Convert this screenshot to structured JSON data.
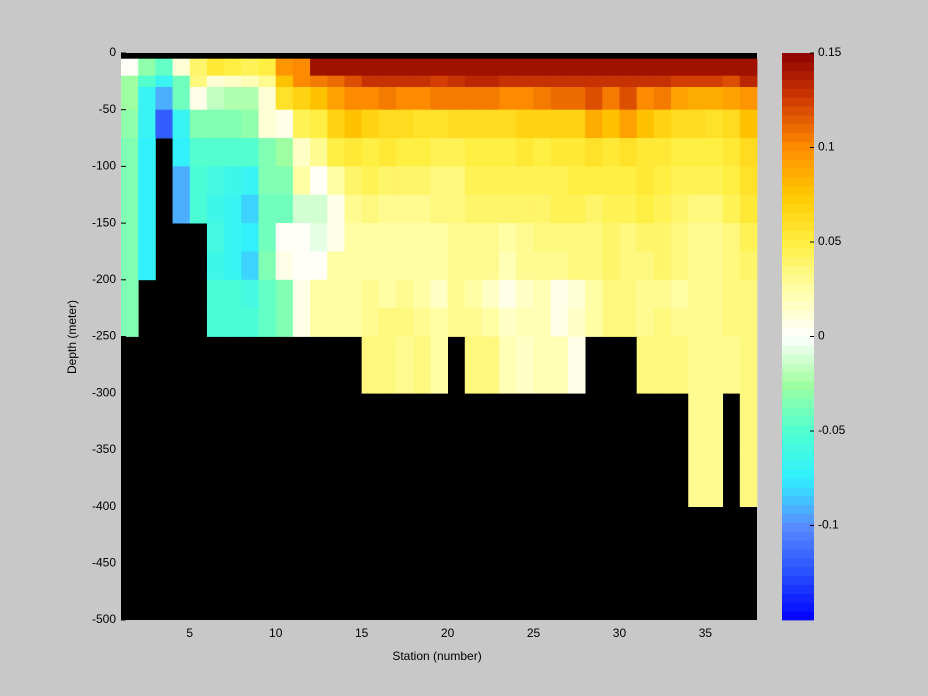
{
  "chart_data": {
    "type": "heatmap",
    "xlabel": "Station (number)",
    "ylabel": "Depth (meter)",
    "x": [
      1,
      2,
      3,
      4,
      5,
      6,
      7,
      8,
      9,
      10,
      11,
      12,
      13,
      14,
      15,
      16,
      17,
      18,
      19,
      20,
      21,
      22,
      23,
      24,
      25,
      26,
      27,
      28,
      29,
      30,
      31,
      32,
      33,
      34,
      35,
      36,
      37,
      38
    ],
    "y": [
      0,
      -5,
      -20,
      -30,
      -50,
      -75,
      -100,
      -125,
      -150,
      -175,
      -200,
      -225,
      -250,
      -300,
      -350,
      -400,
      -500
    ],
    "xlim": [
      1,
      38
    ],
    "ylim": [
      -500,
      0
    ],
    "xticks": [
      5,
      10,
      15,
      20,
      25,
      30,
      35
    ],
    "yticks": [
      0,
      -50,
      -100,
      -150,
      -200,
      -250,
      -300,
      -350,
      -400,
      -450,
      -500
    ],
    "nan_color": "#000000",
    "z": [
      [
        null,
        null,
        null,
        null,
        null,
        null,
        null,
        null,
        null,
        null,
        null,
        null,
        null,
        null,
        null,
        null,
        null,
        null,
        null,
        null,
        null,
        null,
        null,
        null,
        null,
        null,
        null,
        null,
        null,
        null,
        null,
        null,
        null,
        null,
        null,
        null,
        null
      ],
      [
        0.0,
        -0.03,
        -0.045,
        0.01,
        0.04,
        0.055,
        0.05,
        0.045,
        0.05,
        0.095,
        0.1,
        0.145,
        0.145,
        0.145,
        0.145,
        0.145,
        0.145,
        0.145,
        0.145,
        0.145,
        0.145,
        0.145,
        0.145,
        0.145,
        0.145,
        0.145,
        0.145,
        0.145,
        0.145,
        0.145,
        0.145,
        0.145,
        0.145,
        0.145,
        0.145,
        0.145,
        0.145
      ],
      [
        -0.025,
        -0.05,
        -0.07,
        -0.04,
        0.035,
        0.01,
        0.015,
        0.02,
        0.03,
        0.075,
        0.1,
        0.105,
        0.11,
        0.12,
        0.13,
        0.13,
        0.13,
        0.13,
        0.125,
        0.13,
        0.135,
        0.135,
        0.13,
        0.13,
        0.13,
        0.13,
        0.13,
        0.13,
        0.13,
        0.13,
        0.13,
        0.13,
        0.125,
        0.125,
        0.125,
        0.12,
        0.135
      ],
      [
        -0.025,
        -0.07,
        -0.09,
        -0.04,
        0.005,
        -0.015,
        -0.02,
        -0.02,
        0.01,
        0.06,
        0.07,
        0.075,
        0.09,
        0.1,
        0.1,
        0.105,
        0.1,
        0.1,
        0.105,
        0.105,
        0.105,
        0.105,
        0.1,
        0.1,
        0.105,
        0.11,
        0.11,
        0.12,
        0.105,
        0.12,
        0.1,
        0.105,
        0.09,
        0.085,
        0.085,
        0.09,
        0.095
      ],
      [
        -0.03,
        -0.07,
        -0.12,
        -0.07,
        -0.035,
        -0.035,
        -0.035,
        -0.03,
        0.01,
        0.005,
        0.045,
        0.05,
        0.07,
        0.075,
        0.07,
        0.065,
        0.065,
        0.06,
        0.06,
        0.065,
        0.065,
        0.065,
        0.065,
        0.07,
        0.07,
        0.07,
        0.07,
        0.085,
        0.075,
        0.09,
        0.075,
        0.07,
        0.065,
        0.065,
        0.06,
        0.065,
        0.075
      ],
      [
        -0.035,
        -0.075,
        null,
        -0.075,
        -0.05,
        -0.05,
        -0.05,
        -0.05,
        -0.035,
        -0.025,
        0.015,
        0.03,
        0.05,
        0.055,
        0.05,
        0.055,
        0.05,
        0.05,
        0.045,
        0.045,
        0.05,
        0.05,
        0.05,
        0.055,
        0.05,
        0.055,
        0.055,
        0.06,
        0.055,
        0.06,
        0.055,
        0.055,
        0.05,
        0.05,
        0.05,
        0.055,
        0.065
      ],
      [
        -0.035,
        -0.075,
        null,
        -0.09,
        -0.055,
        -0.06,
        -0.065,
        -0.07,
        -0.035,
        -0.035,
        0.025,
        0.0,
        0.025,
        0.04,
        0.045,
        0.04,
        0.04,
        0.04,
        0.035,
        0.035,
        0.045,
        0.045,
        0.045,
        0.045,
        0.045,
        0.045,
        0.05,
        0.05,
        0.05,
        0.05,
        0.055,
        0.05,
        0.045,
        0.045,
        0.045,
        0.05,
        0.06
      ],
      [
        -0.035,
        -0.075,
        null,
        -0.09,
        -0.055,
        -0.065,
        -0.07,
        -0.08,
        -0.04,
        -0.04,
        -0.01,
        -0.01,
        0.005,
        0.03,
        0.035,
        0.03,
        0.03,
        0.03,
        0.035,
        0.035,
        0.04,
        0.04,
        0.04,
        0.04,
        0.04,
        0.045,
        0.045,
        0.04,
        0.045,
        0.045,
        0.05,
        0.045,
        0.04,
        0.035,
        0.035,
        0.045,
        0.055
      ],
      [
        -0.035,
        -0.075,
        null,
        null,
        null,
        -0.06,
        -0.07,
        -0.075,
        -0.04,
        0.0,
        0.0,
        -0.005,
        0.005,
        0.025,
        0.025,
        0.025,
        0.025,
        0.025,
        0.025,
        0.03,
        0.03,
        0.03,
        0.025,
        0.03,
        0.035,
        0.035,
        0.035,
        0.035,
        0.04,
        0.035,
        0.04,
        0.04,
        0.035,
        0.03,
        0.03,
        0.035,
        0.045
      ],
      [
        -0.035,
        -0.075,
        null,
        null,
        null,
        -0.065,
        -0.07,
        -0.08,
        -0.035,
        0.005,
        0.0,
        0.0,
        0.025,
        0.025,
        0.025,
        0.025,
        0.025,
        0.025,
        0.025,
        0.03,
        0.03,
        0.03,
        0.02,
        0.03,
        0.03,
        0.03,
        0.035,
        0.035,
        0.04,
        0.035,
        0.035,
        0.04,
        0.035,
        0.03,
        0.03,
        0.035,
        0.04
      ],
      [
        -0.035,
        null,
        null,
        null,
        null,
        -0.055,
        -0.055,
        -0.06,
        -0.045,
        -0.035,
        0.005,
        0.025,
        0.025,
        0.025,
        0.03,
        0.025,
        0.03,
        0.025,
        0.015,
        0.03,
        0.025,
        0.015,
        0.005,
        0.015,
        0.02,
        0.005,
        0.01,
        0.025,
        0.035,
        0.035,
        0.03,
        0.03,
        0.025,
        0.03,
        0.03,
        0.035,
        0.035
      ],
      [
        -0.035,
        null,
        null,
        null,
        null,
        -0.055,
        -0.055,
        -0.055,
        -0.045,
        -0.035,
        0.005,
        0.025,
        0.025,
        0.025,
        0.03,
        0.035,
        0.035,
        0.03,
        0.025,
        0.03,
        0.03,
        0.025,
        0.015,
        0.02,
        0.02,
        0.005,
        0.015,
        0.025,
        0.035,
        0.035,
        0.03,
        0.035,
        0.03,
        0.03,
        0.03,
        0.035,
        0.035
      ],
      [
        null,
        null,
        null,
        null,
        null,
        null,
        null,
        null,
        null,
        null,
        null,
        null,
        null,
        null,
        0.035,
        0.035,
        0.03,
        0.035,
        0.025,
        null,
        0.035,
        0.035,
        0.02,
        0.015,
        0.02,
        0.02,
        0.005,
        null,
        null,
        null,
        0.035,
        0.035,
        0.035,
        0.03,
        0.03,
        0.03,
        0.035
      ],
      [
        null,
        null,
        null,
        null,
        null,
        null,
        null,
        null,
        null,
        null,
        null,
        null,
        null,
        null,
        null,
        null,
        null,
        null,
        null,
        null,
        null,
        null,
        null,
        null,
        null,
        null,
        null,
        null,
        null,
        null,
        null,
        null,
        null,
        0.03,
        0.03,
        null,
        0.035
      ],
      [
        null,
        null,
        null,
        null,
        null,
        null,
        null,
        null,
        null,
        null,
        null,
        null,
        null,
        null,
        null,
        null,
        null,
        null,
        null,
        null,
        null,
        null,
        null,
        null,
        null,
        null,
        null,
        null,
        null,
        null,
        null,
        null,
        null,
        0.03,
        0.03,
        null,
        0.035
      ],
      [
        null,
        null,
        null,
        null,
        null,
        null,
        null,
        null,
        null,
        null,
        null,
        null,
        null,
        null,
        null,
        null,
        null,
        null,
        null,
        null,
        null,
        null,
        null,
        null,
        null,
        null,
        null,
        null,
        null,
        null,
        null,
        null,
        null,
        null,
        null,
        null,
        null
      ]
    ],
    "colorbar": {
      "clim": [
        -0.15,
        0.15
      ],
      "ticks": [
        -0.1,
        -0.05,
        0,
        0.05,
        0.1,
        0.15
      ],
      "levels": 64,
      "colors": [
        "#0000ff",
        "#2850ff",
        "#5a8cff",
        "#30f0ff",
        "#50ffd0",
        "#a0ffa0",
        "#ffffff",
        "#ffffa8",
        "#ffee40",
        "#ffc800",
        "#ff8c00",
        "#d23c00",
        "#8c0000"
      ]
    }
  }
}
